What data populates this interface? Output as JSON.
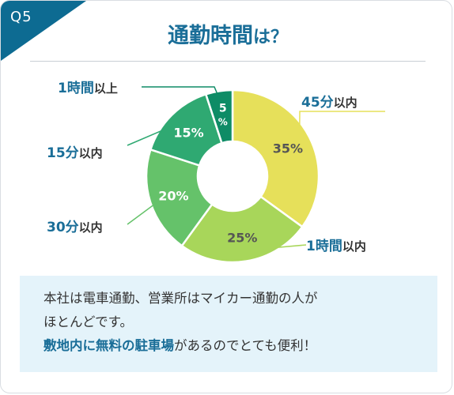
{
  "badge": {
    "label": "Q5"
  },
  "title": {
    "main": "通勤時間",
    "suffix": "は？"
  },
  "chart_data": {
    "type": "pie",
    "categories": [
      "45分以内",
      "1時間以内",
      "30分以内",
      "15分以内",
      "1時間以上"
    ],
    "values": [
      35,
      25,
      20,
      15,
      5
    ],
    "data_labels": [
      "35%",
      "25%",
      "20%",
      "15%",
      "5%"
    ],
    "colors": [
      "#e6e05a",
      "#a8d65a",
      "#65c26a",
      "#2fa972",
      "#0e8c66"
    ],
    "callouts": [
      {
        "num": "45分",
        "unit": "以内"
      },
      {
        "num": "1時間",
        "unit": "以内"
      },
      {
        "num": "30分",
        "unit": "以内"
      },
      {
        "num": "15分",
        "unit": "以内"
      },
      {
        "num": "1時間",
        "unit": "以上"
      }
    ]
  },
  "note": {
    "line1": "本社は電車通勤、営業所はマイカー通勤の人が",
    "line2": "ほとんどです。",
    "line3_emphasis": "敷地内に無料の駐車場",
    "line3_rest": "があるのでとても便利！"
  }
}
